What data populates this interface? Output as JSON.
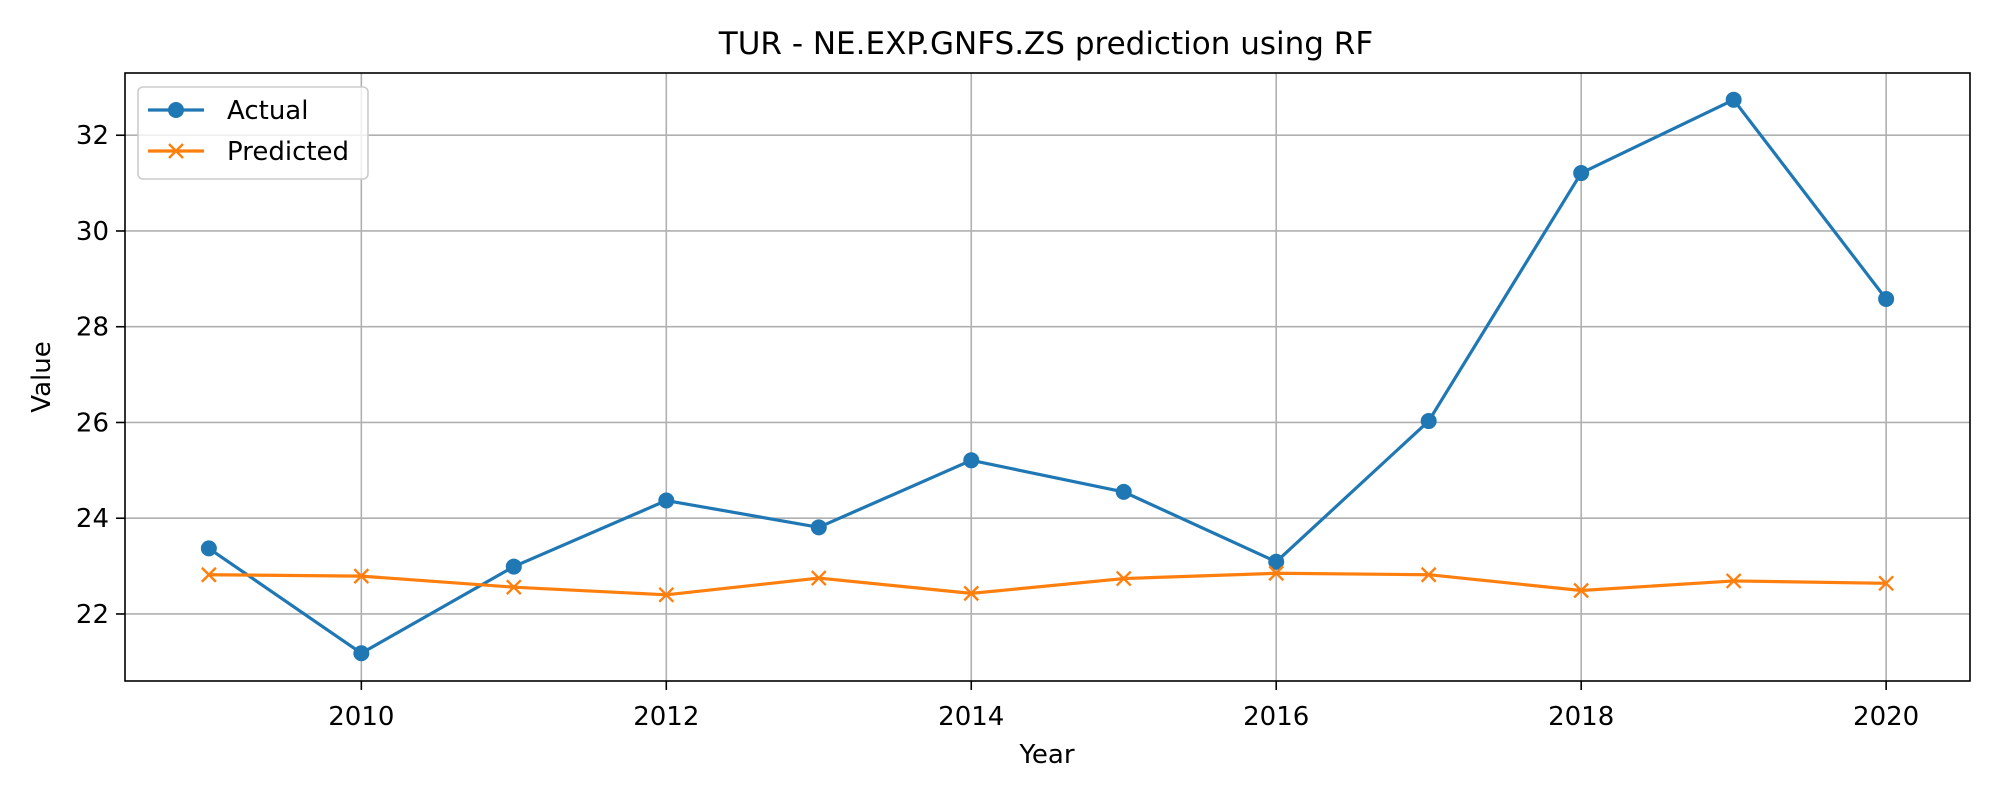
{
  "chart_data": {
    "type": "line",
    "title": "TUR - NE.EXP.GNFS.ZS prediction using RF",
    "xlabel": "Year",
    "ylabel": "Value",
    "x": [
      2009,
      2010,
      2011,
      2012,
      2013,
      2014,
      2015,
      2016,
      2017,
      2018,
      2019,
      2020
    ],
    "series": [
      {
        "name": "Actual",
        "color": "#1f77b4",
        "marker": "circle",
        "values": [
          23.37,
          21.18,
          22.99,
          24.37,
          23.81,
          25.21,
          24.55,
          23.09,
          26.03,
          31.21,
          32.74,
          28.58
        ]
      },
      {
        "name": "Predicted",
        "color": "#ff7f0e",
        "marker": "x",
        "values": [
          22.82,
          22.79,
          22.56,
          22.4,
          22.75,
          22.43,
          22.74,
          22.85,
          22.82,
          22.49,
          22.69,
          22.64
        ]
      }
    ],
    "xticks": [
      2010,
      2012,
      2014,
      2016,
      2018,
      2020
    ],
    "yticks": [
      22,
      24,
      26,
      28,
      30,
      32
    ],
    "xlim": [
      2008.45,
      2020.55
    ],
    "ylim": [
      20.6,
      33.3
    ],
    "grid": true,
    "legend_position": "top-left"
  }
}
